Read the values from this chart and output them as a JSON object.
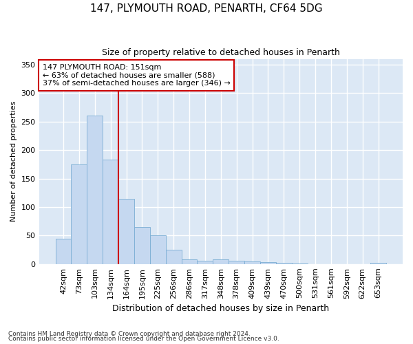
{
  "title1": "147, PLYMOUTH ROAD, PENARTH, CF64 5DG",
  "title2": "Size of property relative to detached houses in Penarth",
  "xlabel": "Distribution of detached houses by size in Penarth",
  "ylabel": "Number of detached properties",
  "footer1": "Contains HM Land Registry data © Crown copyright and database right 2024.",
  "footer2": "Contains public sector information licensed under the Open Government Licence v3.0.",
  "annotation_line1": "147 PLYMOUTH ROAD: 151sqm",
  "annotation_line2": "← 63% of detached houses are smaller (588)",
  "annotation_line3": "37% of semi-detached houses are larger (346) →",
  "bar_labels": [
    "42sqm",
    "73sqm",
    "103sqm",
    "134sqm",
    "164sqm",
    "195sqm",
    "225sqm",
    "256sqm",
    "286sqm",
    "317sqm",
    "348sqm",
    "378sqm",
    "409sqm",
    "439sqm",
    "470sqm",
    "500sqm",
    "531sqm",
    "561sqm",
    "592sqm",
    "622sqm",
    "653sqm"
  ],
  "bar_values": [
    44,
    175,
    260,
    183,
    114,
    65,
    50,
    25,
    8,
    6,
    8,
    6,
    4,
    3,
    2,
    1,
    0,
    0,
    0,
    0,
    2
  ],
  "bar_color": "#c5d8f0",
  "bar_edge_color": "#7aadd4",
  "vline_color": "#cc0000",
  "vline_x": 3.5,
  "annotation_box_facecolor": "#ffffff",
  "annotation_box_edgecolor": "#cc0000",
  "plot_bg_color": "#dce8f5",
  "figure_bg_color": "#ffffff",
  "grid_color": "#ffffff",
  "title1_fontsize": 11,
  "title2_fontsize": 9,
  "ylabel_fontsize": 8,
  "xlabel_fontsize": 9,
  "tick_fontsize": 8,
  "xtick_fontsize": 8,
  "footer_fontsize": 6.5,
  "annotation_fontsize": 8,
  "ylim": [
    0,
    360
  ],
  "yticks": [
    0,
    50,
    100,
    150,
    200,
    250,
    300,
    350
  ]
}
